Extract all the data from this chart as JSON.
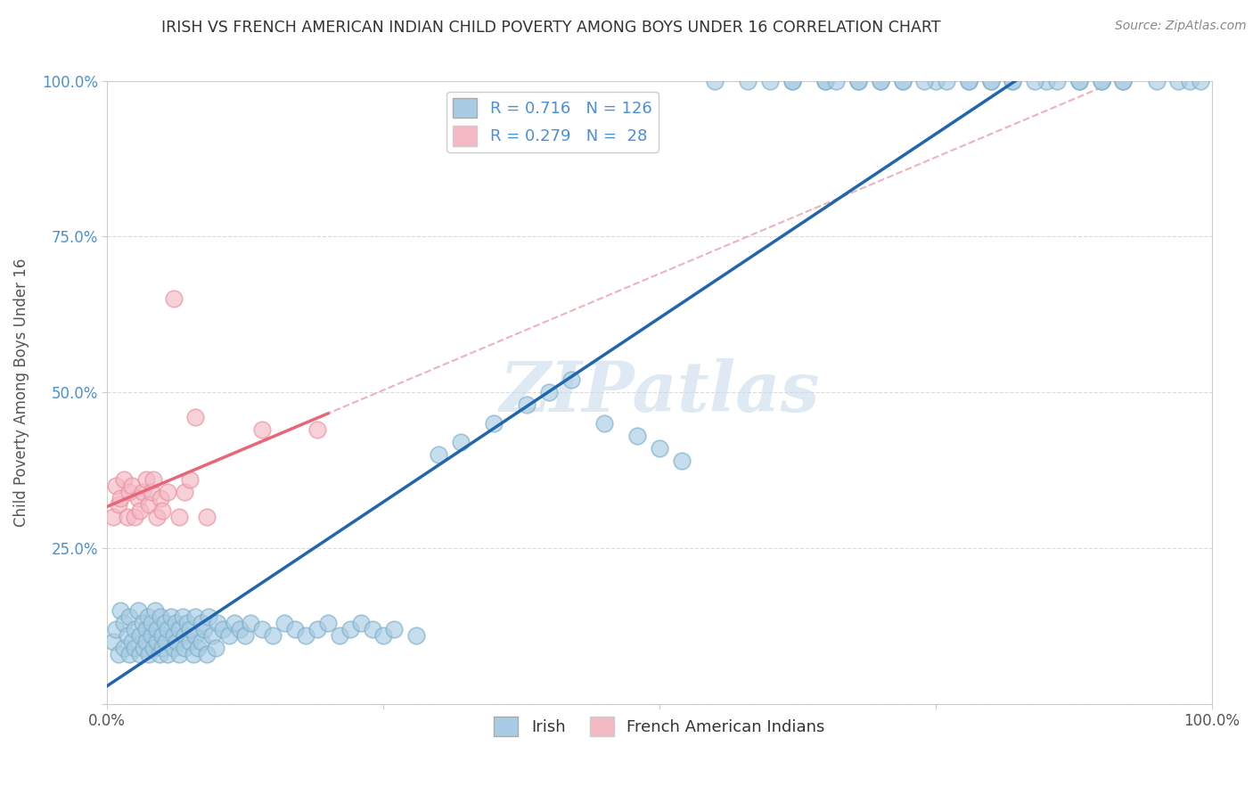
{
  "title": "IRISH VS FRENCH AMERICAN INDIAN CHILD POVERTY AMONG BOYS UNDER 16 CORRELATION CHART",
  "source": "Source: ZipAtlas.com",
  "ylabel": "Child Poverty Among Boys Under 16",
  "xlim": [
    0,
    1
  ],
  "ylim": [
    0,
    1
  ],
  "irish_color": "#a8cce4",
  "irish_edge_color": "#7aafc8",
  "french_color": "#f4b8c4",
  "french_edge_color": "#e8909e",
  "irish_line_color": "#2166ac",
  "french_line_color": "#e8657a",
  "dashed_line_color": "#e8a0a8",
  "irish_R": 0.716,
  "irish_N": 126,
  "french_R": 0.279,
  "french_N": 28,
  "watermark": "ZIPatlas",
  "background_color": "#ffffff",
  "grid_color": "#cccccc",
  "irish_x": [
    0.005,
    0.008,
    0.01,
    0.012,
    0.015,
    0.015,
    0.018,
    0.02,
    0.02,
    0.022,
    0.025,
    0.025,
    0.028,
    0.03,
    0.03,
    0.032,
    0.033,
    0.035,
    0.035,
    0.037,
    0.038,
    0.04,
    0.04,
    0.042,
    0.043,
    0.045,
    0.045,
    0.047,
    0.048,
    0.05,
    0.05,
    0.052,
    0.053,
    0.055,
    0.055,
    0.058,
    0.06,
    0.06,
    0.062,
    0.063,
    0.065,
    0.065,
    0.068,
    0.07,
    0.07,
    0.072,
    0.075,
    0.075,
    0.078,
    0.08,
    0.08,
    0.082,
    0.085,
    0.085,
    0.088,
    0.09,
    0.092,
    0.095,
    0.098,
    0.1,
    0.105,
    0.11,
    0.115,
    0.12,
    0.125,
    0.13,
    0.14,
    0.15,
    0.16,
    0.17,
    0.18,
    0.19,
    0.2,
    0.21,
    0.22,
    0.23,
    0.24,
    0.25,
    0.26,
    0.28,
    0.3,
    0.32,
    0.35,
    0.38,
    0.4,
    0.42,
    0.45,
    0.48,
    0.5,
    0.52,
    0.55,
    0.58,
    0.6,
    0.62,
    0.65,
    0.68,
    0.7,
    0.72,
    0.75,
    0.78,
    0.8,
    0.82,
    0.85,
    0.88,
    0.9,
    0.92,
    0.95,
    0.97,
    0.98,
    0.99,
    0.62,
    0.65,
    0.66,
    0.68,
    0.7,
    0.72,
    0.74,
    0.76,
    0.78,
    0.8,
    0.82,
    0.84,
    0.86,
    0.88,
    0.9,
    0.92
  ],
  "irish_y": [
    0.1,
    0.12,
    0.08,
    0.15,
    0.09,
    0.13,
    0.11,
    0.14,
    0.08,
    0.1,
    0.12,
    0.09,
    0.15,
    0.08,
    0.11,
    0.13,
    0.09,
    0.12,
    0.1,
    0.14,
    0.08,
    0.11,
    0.13,
    0.09,
    0.15,
    0.1,
    0.12,
    0.08,
    0.14,
    0.11,
    0.09,
    0.13,
    0.1,
    0.12,
    0.08,
    0.14,
    0.11,
    0.09,
    0.13,
    0.1,
    0.12,
    0.08,
    0.14,
    0.11,
    0.09,
    0.13,
    0.1,
    0.12,
    0.08,
    0.14,
    0.11,
    0.09,
    0.13,
    0.1,
    0.12,
    0.08,
    0.14,
    0.11,
    0.09,
    0.13,
    0.12,
    0.11,
    0.13,
    0.12,
    0.11,
    0.13,
    0.12,
    0.11,
    0.13,
    0.12,
    0.11,
    0.12,
    0.13,
    0.11,
    0.12,
    0.13,
    0.12,
    0.11,
    0.12,
    0.11,
    0.4,
    0.42,
    0.45,
    0.48,
    0.5,
    0.52,
    0.45,
    0.43,
    0.41,
    0.39,
    1.0,
    1.0,
    1.0,
    1.0,
    1.0,
    1.0,
    1.0,
    1.0,
    1.0,
    1.0,
    1.0,
    1.0,
    1.0,
    1.0,
    1.0,
    1.0,
    1.0,
    1.0,
    1.0,
    1.0,
    1.0,
    1.0,
    1.0,
    1.0,
    1.0,
    1.0,
    1.0,
    1.0,
    1.0,
    1.0,
    1.0,
    1.0,
    1.0,
    1.0,
    1.0,
    1.0
  ],
  "french_x": [
    0.005,
    0.008,
    0.01,
    0.012,
    0.015,
    0.018,
    0.02,
    0.022,
    0.025,
    0.028,
    0.03,
    0.032,
    0.035,
    0.038,
    0.04,
    0.042,
    0.045,
    0.048,
    0.05,
    0.055,
    0.06,
    0.065,
    0.07,
    0.075,
    0.08,
    0.09,
    0.14,
    0.19
  ],
  "french_y": [
    0.3,
    0.35,
    0.32,
    0.33,
    0.36,
    0.3,
    0.34,
    0.35,
    0.3,
    0.33,
    0.31,
    0.34,
    0.36,
    0.32,
    0.34,
    0.36,
    0.3,
    0.33,
    0.31,
    0.34,
    0.65,
    0.3,
    0.34,
    0.36,
    0.46,
    0.3,
    0.44,
    0.44
  ]
}
